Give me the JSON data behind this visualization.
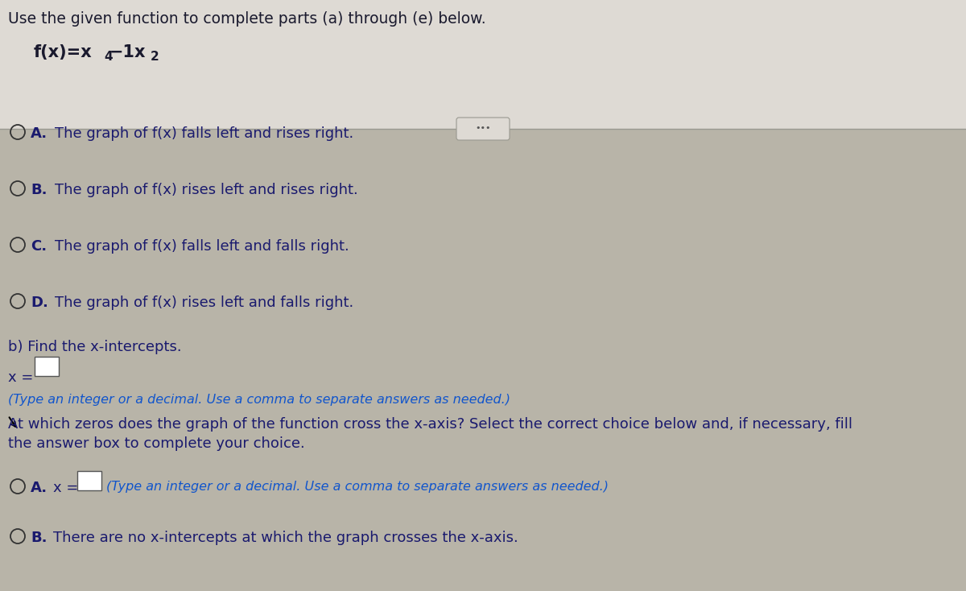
{
  "title_line": "Use the given function to complete parts (a) through (e) below.",
  "options": [
    {
      "label": "A.",
      "text": "The graph of f(x) falls left and rises right."
    },
    {
      "label": "B.",
      "text": "The graph of f(x) rises left and rises right."
    },
    {
      "label": "C.",
      "text": "The graph of f(x) falls left and falls right."
    },
    {
      "label": "D.",
      "text": "The graph of f(x) rises left and falls right."
    }
  ],
  "part_b_label": "b) Find the x-intercepts.",
  "type_note": "(Type an integer or a decimal. Use a comma to separate answers as needed.)",
  "cross_question": "At which zeros does the graph of the function cross the x-axis? Select the correct choice below and, if necessary, fill",
  "cross_question2": "the answer box to complete your choice.",
  "sub_opt_a_suffix": "(Type an integer or a decimal. Use a comma to separate answers as needed.)",
  "sub_opt_b_text": "There are no x-intercepts at which the graph crosses the x-axis.",
  "bg_color": "#b8b4a8",
  "panel_color": "#dedad4",
  "text_color": "#1a1a2e",
  "option_text_color": "#1a1a6e",
  "circle_color": "#333333",
  "link_color": "#1155cc",
  "font_size_title": 13.5,
  "font_size_func": 15,
  "font_size_options": 13,
  "font_size_note": 11.5
}
